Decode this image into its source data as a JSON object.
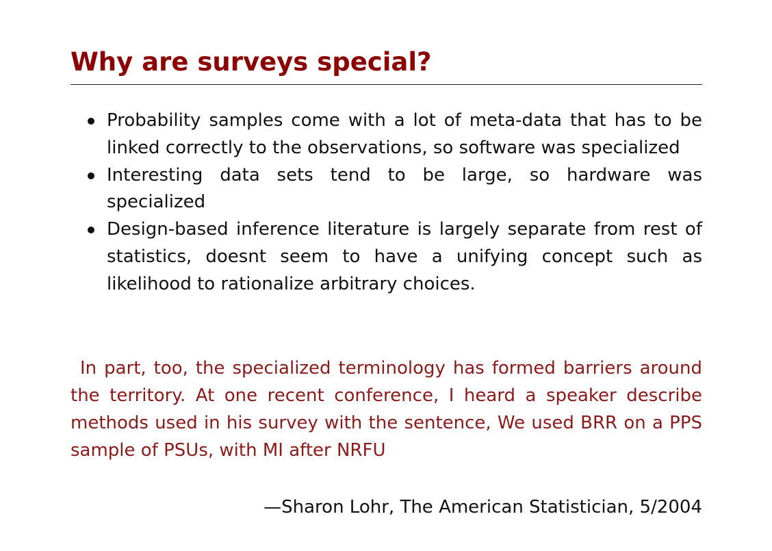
{
  "slide": {
    "title": "Why are surveys special?",
    "bullets": [
      "Probability samples come with a lot of meta-data that has to be linked correctly to the observations, so software was specialized",
      "Interesting data sets tend to be large, so hardware was specialized",
      "Design-based inference literature is largely separate from rest of statistics, doesnt seem to have a unifying concept such as likelihood to rationalize arbitrary choices."
    ],
    "quote": "In part, too, the specialized terminology has formed barriers around the territory. At one recent conference, I heard a speaker describe methods used in his survey with the sentence, We used BRR on a PPS sample of PSUs, with MI after NRFU",
    "attribution": "—Sharon Lohr, The American Statistician, 5/2004"
  },
  "colors": {
    "title": "#8b0000",
    "quote": "#8b1a1a",
    "body_text": "#111111",
    "rule": "#222222"
  }
}
